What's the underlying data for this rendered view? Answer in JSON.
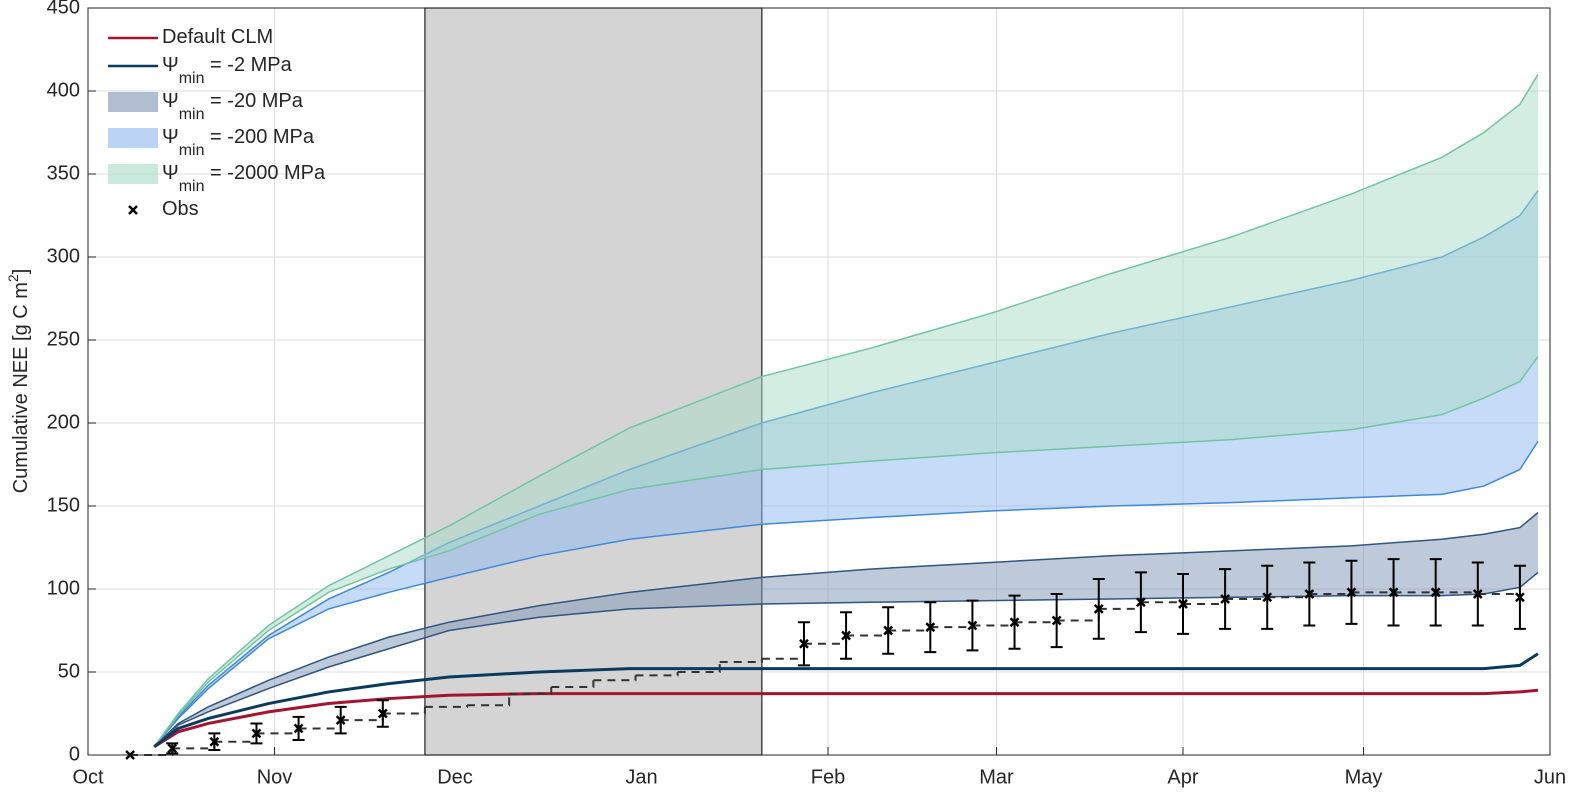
{
  "chart_data": {
    "type": "band-line",
    "ylabel": [
      "Cumulative NEE [g C m",
      "2",
      "]"
    ],
    "xlim": [
      0,
      243
    ],
    "xticks": [
      {
        "value": 0,
        "label": "Oct"
      },
      {
        "value": 31,
        "label": "Nov"
      },
      {
        "value": 61,
        "label": "Dec"
      },
      {
        "value": 92,
        "label": "Jan"
      },
      {
        "value": 123,
        "label": "Feb"
      },
      {
        "value": 151,
        "label": "Mar"
      },
      {
        "value": 182,
        "label": "Apr"
      },
      {
        "value": 212,
        "label": "May"
      },
      {
        "value": 243,
        "label": "Jun"
      }
    ],
    "ylim": [
      0,
      450
    ],
    "yticks": [
      0,
      50,
      100,
      150,
      200,
      250,
      300,
      350,
      400,
      450
    ],
    "grid": true,
    "legend": "upper-left",
    "shaded_x": [
      56,
      112
    ],
    "shaded_color": "#d4d4d4",
    "x": [
      11,
      15,
      20,
      30,
      40,
      50,
      60,
      75,
      90,
      112,
      130,
      150,
      170,
      190,
      210,
      225,
      232,
      238,
      241
    ],
    "series": [
      {
        "name": [
          "Default CLM"
        ],
        "style": "line",
        "color": "#a2142f",
        "values": [
          5,
          14,
          19,
          26,
          31,
          34,
          36,
          37,
          37,
          37,
          37,
          37,
          37,
          37,
          37,
          37,
          37,
          38,
          39
        ]
      },
      {
        "name": [
          "Ψ",
          "min",
          " = -2 MPa"
        ],
        "style": "line",
        "color": "#0b3a5f",
        "values": [
          5,
          16,
          22,
          31,
          38,
          43,
          47,
          50,
          52,
          52,
          52,
          52,
          52,
          52,
          52,
          52,
          52,
          54,
          61
        ]
      },
      {
        "name": [
          "Ψ",
          "min",
          " = -20 MPa"
        ],
        "style": "band",
        "color": "#7d93b3",
        "edge": "#2f5581",
        "lower": [
          5,
          18,
          26,
          40,
          53,
          64,
          75,
          83,
          88,
          91,
          92,
          93,
          94,
          95,
          96,
          96,
          97,
          101,
          110
        ],
        "upper": [
          5,
          19,
          29,
          45,
          59,
          71,
          80,
          90,
          98,
          107,
          112,
          116,
          120,
          123,
          126,
          130,
          133,
          137,
          146
        ]
      },
      {
        "name": [
          "Ψ",
          "min",
          " = -200 MPa"
        ],
        "style": "band",
        "color": "#8db8ef",
        "edge": "#3f89d8",
        "lower": [
          5,
          22,
          40,
          70,
          88,
          98,
          107,
          120,
          130,
          139,
          143,
          147,
          150,
          152,
          155,
          157,
          162,
          172,
          189
        ],
        "upper": [
          5,
          23,
          42,
          72,
          94,
          110,
          128,
          150,
          172,
          200,
          218,
          236,
          254,
          270,
          286,
          300,
          312,
          325,
          340
        ]
      },
      {
        "name": [
          "Ψ",
          "min",
          " = -2000 MPa"
        ],
        "style": "band",
        "color": "#a7dcc6",
        "edge": "#72c4a3",
        "lower": [
          5,
          24,
          44,
          75,
          98,
          112,
          123,
          145,
          160,
          172,
          177,
          182,
          186,
          190,
          196,
          205,
          215,
          225,
          240
        ],
        "upper": [
          5,
          25,
          46,
          78,
          102,
          120,
          138,
          168,
          197,
          228,
          245,
          266,
          290,
          312,
          338,
          360,
          375,
          392,
          410
        ]
      },
      {
        "name": [
          "Obs"
        ],
        "style": "points",
        "color": "#000000",
        "x": [
          7,
          14,
          21,
          28,
          35,
          42,
          49,
          119,
          126,
          133,
          140,
          147,
          154,
          161,
          168,
          175,
          182,
          189,
          196,
          203,
          210,
          217,
          224,
          231,
          238
        ],
        "values": [
          0,
          4,
          8,
          13,
          16,
          21,
          25,
          67,
          72,
          75,
          77,
          78,
          80,
          81,
          88,
          92,
          91,
          94,
          95,
          97,
          98,
          98,
          98,
          97,
          95
        ],
        "errors": [
          0,
          3,
          5,
          6,
          7,
          8,
          8,
          13,
          14,
          14,
          15,
          15,
          16,
          16,
          18,
          18,
          18,
          18,
          19,
          19,
          19,
          20,
          20,
          19,
          19
        ],
        "step_x": [
          7,
          14,
          21,
          28,
          35,
          42,
          49,
          56,
          63,
          70,
          77,
          84,
          91,
          98,
          105,
          112,
          119,
          126,
          133,
          140,
          147,
          154,
          161,
          168,
          175,
          182,
          189,
          196,
          203,
          210,
          217,
          224,
          231,
          238
        ],
        "step_values": [
          0,
          4,
          8,
          13,
          16,
          21,
          25,
          29,
          30,
          37,
          41,
          45,
          48,
          50,
          56,
          58,
          67,
          72,
          75,
          77,
          78,
          80,
          81,
          88,
          92,
          91,
          94,
          95,
          97,
          98,
          98,
          98,
          97,
          95
        ]
      }
    ]
  }
}
